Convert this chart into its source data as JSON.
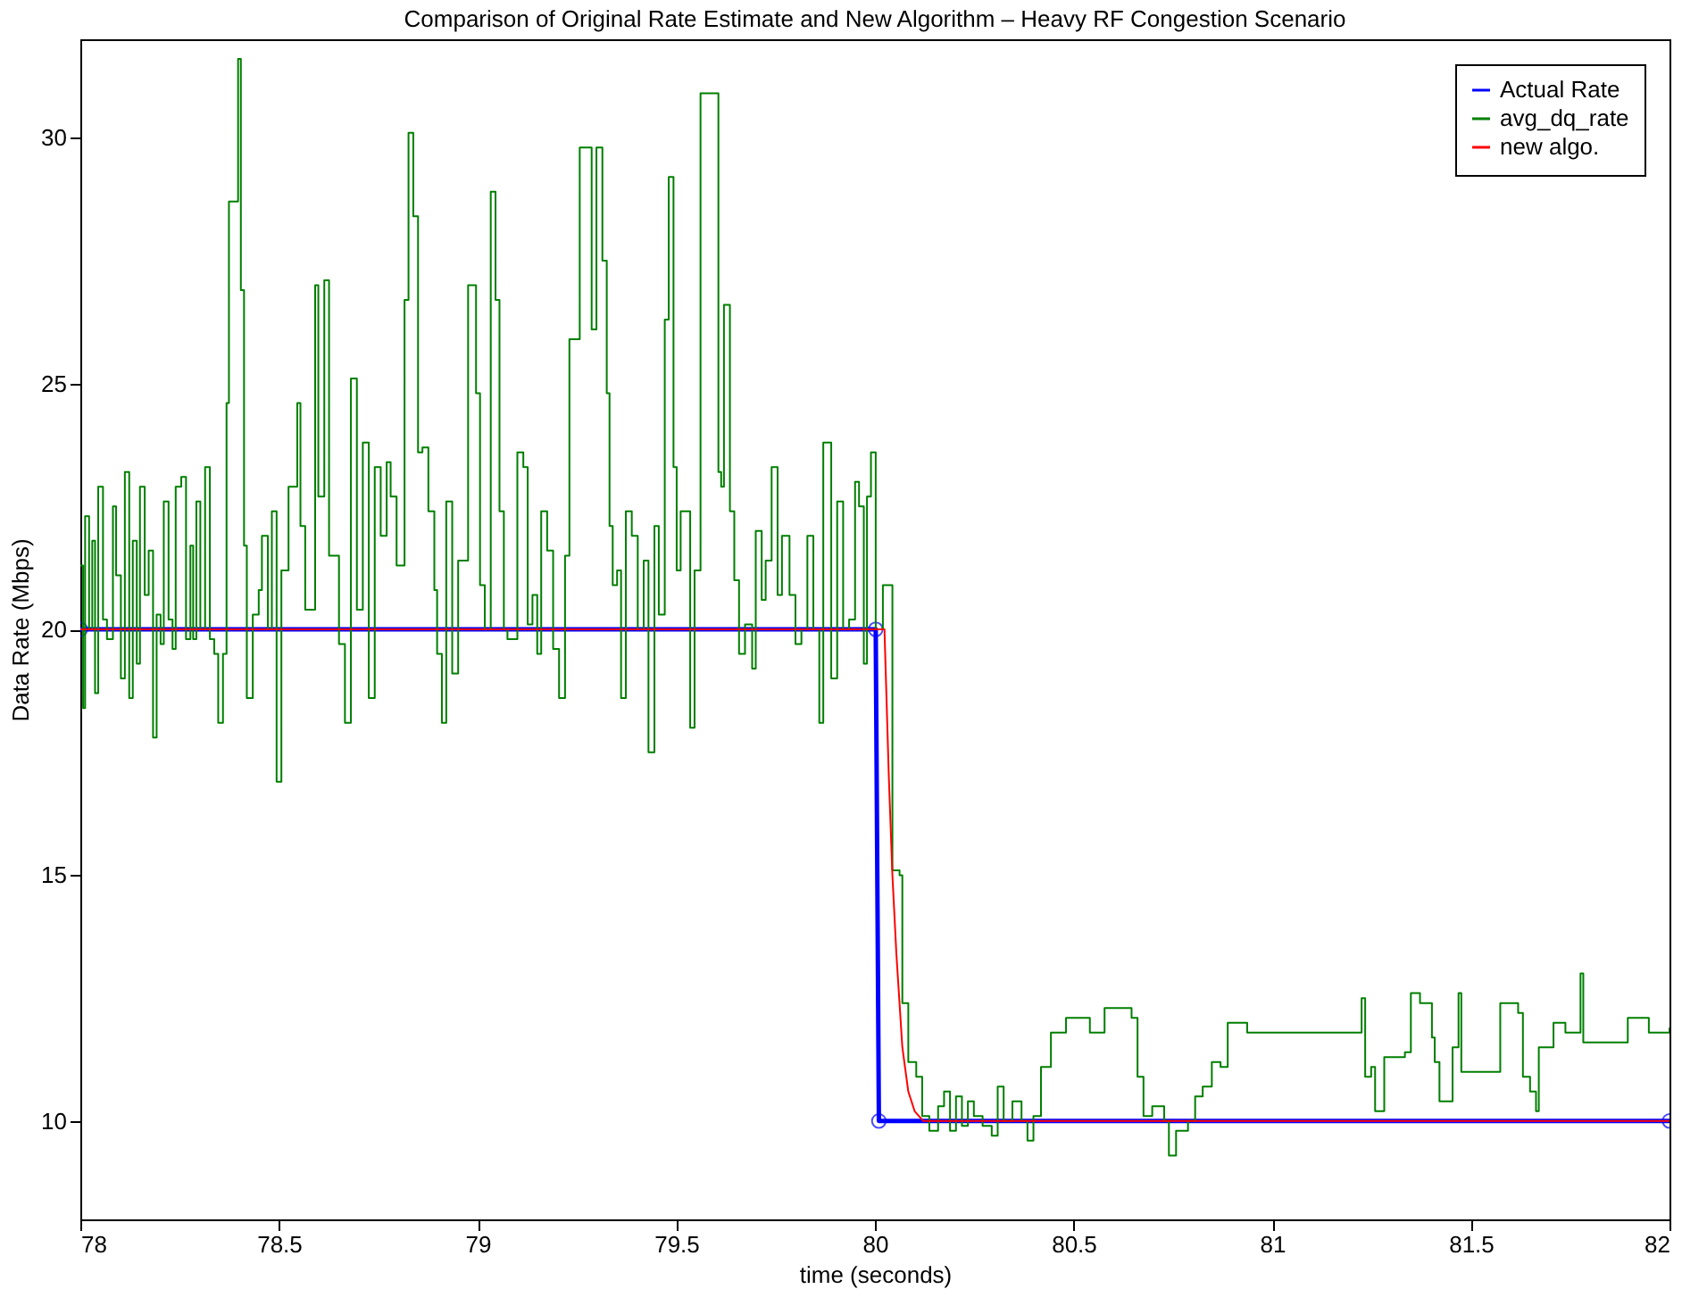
{
  "chart_data": {
    "type": "line",
    "title": "Comparison of Original Rate Estimate and New Algorithm – Heavy RF Congestion Scenario",
    "xlabel": "time (seconds)",
    "ylabel": "Data Rate (Mbps)",
    "xlim": [
      78,
      82
    ],
    "ylim": [
      8,
      32
    ],
    "xticks": [
      78,
      78.5,
      79,
      79.5,
      80,
      80.5,
      81,
      81.5,
      82
    ],
    "yticks": [
      10,
      15,
      20,
      25,
      30
    ],
    "grid": false,
    "legend": "top right",
    "line_style": "solid",
    "series": [
      {
        "name": "Actual Rate",
        "color": "#0000ff",
        "marker": "circle",
        "x": [
          78,
          80.002,
          80.01,
          82
        ],
        "values": [
          20,
          20,
          10,
          10
        ]
      },
      {
        "name": "avg_dq_rate",
        "color": "#007f00",
        "type": "step",
        "marker": "none",
        "x": [
          78.0,
          78.007,
          78.012,
          78.022,
          78.03,
          78.037,
          78.045,
          78.057,
          78.067,
          78.082,
          78.09,
          78.102,
          78.112,
          78.123,
          78.132,
          78.142,
          78.15,
          78.162,
          78.172,
          78.183,
          78.192,
          78.202,
          78.21,
          78.222,
          78.232,
          78.24,
          78.254,
          78.266,
          78.277,
          78.284,
          78.292,
          78.302,
          78.314,
          78.326,
          78.337,
          78.347,
          78.359,
          78.368,
          78.374,
          78.382,
          78.397,
          78.404,
          78.412,
          78.419,
          78.434,
          78.449,
          78.457,
          78.472,
          78.482,
          78.494,
          78.506,
          78.524,
          78.536,
          78.546,
          78.554,
          78.566,
          78.591,
          78.599,
          78.614,
          78.626,
          78.651,
          78.666,
          78.681,
          78.696,
          78.711,
          78.726,
          78.741,
          78.756,
          78.771,
          78.781,
          78.796,
          78.816,
          78.826,
          78.838,
          78.85,
          78.861,
          78.876,
          78.891,
          78.898,
          78.91,
          78.921,
          78.936,
          78.951,
          78.976,
          78.996,
          79.006,
          79.018,
          79.033,
          79.045,
          79.055,
          79.066,
          79.075,
          79.1,
          79.115,
          79.126,
          79.138,
          79.15,
          79.16,
          79.175,
          79.19,
          79.205,
          79.22,
          79.231,
          79.257,
          79.272,
          79.287,
          79.299,
          79.314,
          79.325,
          79.332,
          79.34,
          79.351,
          79.361,
          79.373,
          79.388,
          79.403,
          79.418,
          79.43,
          79.445,
          79.456,
          79.471,
          79.481,
          79.493,
          79.501,
          79.511,
          79.535,
          79.546,
          79.561,
          79.568,
          79.606,
          79.613,
          79.62,
          79.635,
          79.646,
          79.658,
          79.673,
          79.691,
          79.7,
          79.715,
          79.725,
          79.74,
          79.755,
          79.766,
          79.785,
          79.8,
          79.815,
          79.83,
          79.845,
          79.86,
          79.87,
          79.89,
          79.905,
          79.92,
          79.935,
          79.95,
          79.96,
          79.972,
          79.98,
          79.99,
          80.002,
          80.01,
          80.02,
          80.032,
          80.044,
          80.062,
          80.069,
          80.084,
          80.104,
          80.119,
          80.137,
          80.159,
          80.174,
          80.189,
          80.204,
          80.219,
          80.234,
          80.249,
          80.271,
          80.294,
          80.309,
          80.324,
          80.346,
          80.369,
          80.384,
          80.399,
          80.418,
          80.443,
          80.481,
          80.541,
          80.578,
          80.646,
          80.661,
          80.676,
          80.698,
          80.728,
          80.74,
          80.758,
          80.788,
          80.806,
          80.825,
          80.848,
          80.87,
          80.888,
          80.937,
          81.225,
          81.234,
          81.249,
          81.259,
          81.282,
          81.334,
          81.349,
          81.372,
          81.402,
          81.409,
          81.421,
          81.454,
          81.469,
          81.476,
          81.574,
          81.619,
          81.631,
          81.649,
          81.664,
          81.671,
          81.708,
          81.738,
          81.776,
          81.783,
          81.895,
          81.948,
          82.0
        ],
        "values": [
          21.3,
          18.4,
          22.3,
          20,
          21.8,
          18.7,
          22.9,
          20.2,
          19.8,
          22.5,
          21.1,
          19,
          23.2,
          18.6,
          21.8,
          19.3,
          22.9,
          20.7,
          21.6,
          17.8,
          20.3,
          19.7,
          22.6,
          20.2,
          19.6,
          22.9,
          23.1,
          19.8,
          21.7,
          19.8,
          22.6,
          20,
          23.3,
          19.8,
          19.5,
          18.1,
          19.5,
          24.6,
          28.7,
          null,
          31.6,
          26.9,
          21.7,
          18.6,
          20.3,
          20.8,
          21.9,
          20,
          22.4,
          16.9,
          21.2,
          22.9,
          null,
          24.6,
          22.1,
          20.4,
          27,
          22.7,
          27.1,
          21.5,
          19.7,
          18.1,
          25.1,
          20.4,
          23.8,
          18.6,
          23.3,
          21.9,
          23.4,
          22.7,
          21.3,
          26.7,
          30.1,
          28.4,
          23.6,
          23.7,
          22.4,
          20.8,
          19.5,
          18.1,
          22.6,
          19.1,
          21.4,
          27,
          24.8,
          20.9,
          20,
          28.9,
          26.7,
          22.4,
          20,
          19.8,
          23.6,
          23.3,
          20.1,
          20.7,
          19.5,
          22.4,
          21.6,
          19.6,
          18.6,
          21.5,
          25.9,
          29.8,
          null,
          26.1,
          29.8,
          27.5,
          24.8,
          22.1,
          20.9,
          21.2,
          18.6,
          22.4,
          21.9,
          20,
          21.4,
          17.5,
          22.1,
          20.3,
          26.3,
          29.2,
          23.3,
          21.2,
          22.4,
          18,
          21.2,
          30.9,
          null,
          23.2,
          22.9,
          26.6,
          22.4,
          21,
          19.5,
          20.1,
          19.2,
          22,
          20.6,
          21.4,
          23.3,
          20.7,
          21.9,
          20.7,
          19.7,
          20,
          21.9,
          20,
          18.1,
          23.8,
          19,
          22.6,
          20,
          20.2,
          23,
          22.5,
          19.3,
          22.7,
          23.6,
          20,
          20,
          20.9,
          20.9,
          15.1,
          15,
          12.4,
          11.2,
          10.9,
          10.1,
          9.8,
          10.3,
          10.6,
          9.8,
          10.5,
          9.9,
          10.4,
          10.1,
          9.9,
          9.7,
          10.7,
          10,
          10.4,
          10,
          9.6,
          10.1,
          11.1,
          11.8,
          12.1,
          11.8,
          12.3,
          12.1,
          10.9,
          10.1,
          10.3,
          10,
          9.3,
          9.8,
          10,
          10.5,
          10.7,
          11.2,
          11.1,
          12,
          11.8,
          12.5,
          10.9,
          11.1,
          10.2,
          11.3,
          11.4,
          12.6,
          12.4,
          11.7,
          11.2,
          10.4,
          11.5,
          12.6,
          11,
          12.4,
          12.2,
          10.9,
          10.6,
          10.2,
          11.5,
          12,
          11.8,
          13,
          11.6,
          12.1,
          11.8,
          11.9
        ]
      },
      {
        "name": "new algo.",
        "color": "#ff0000",
        "marker": "none",
        "x": [
          78,
          80.024,
          80.035,
          80.044,
          80.054,
          80.069,
          80.084,
          80.1,
          80.122,
          82
        ],
        "values": [
          20,
          20,
          17,
          15,
          13.4,
          11.5,
          10.6,
          10.2,
          10,
          10
        ]
      }
    ]
  }
}
